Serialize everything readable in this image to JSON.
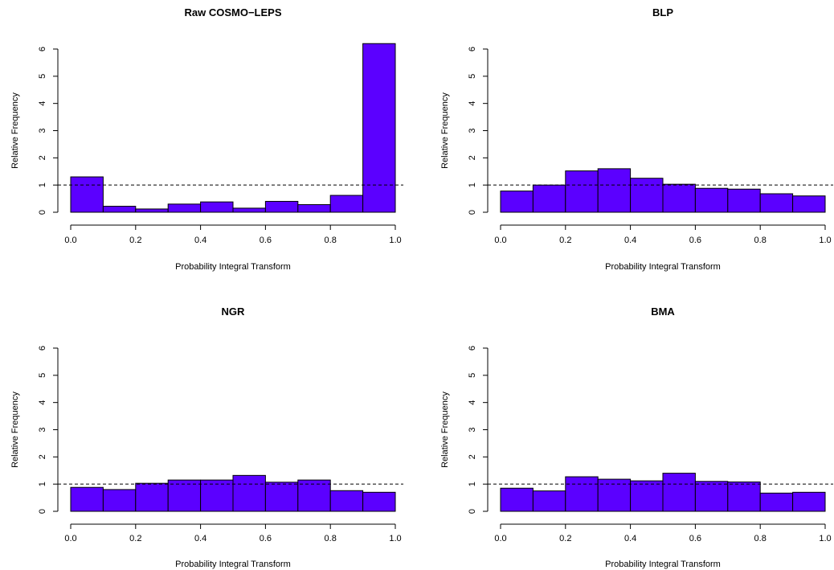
{
  "figure": {
    "bar_color": "#5b00ff",
    "bar_border_color": "#000000",
    "reference_line_value": 1,
    "reference_line_style": "dashed"
  },
  "chart_data": [
    {
      "type": "bar",
      "title": "Raw COSMO−LEPS",
      "xlabel": "Probability Integral Transform",
      "ylabel": "Relative Frequency",
      "bin_edges": [
        0,
        0.1,
        0.2,
        0.3,
        0.4,
        0.5,
        0.6,
        0.7,
        0.8,
        0.9,
        1.0
      ],
      "values": [
        1.3,
        0.22,
        0.12,
        0.3,
        0.38,
        0.15,
        0.4,
        0.28,
        0.62,
        6.2
      ],
      "xlim": [
        0,
        1
      ],
      "ylim": [
        0,
        6
      ],
      "xticks": [
        "0.0",
        "0.2",
        "0.4",
        "0.6",
        "0.8",
        "1.0"
      ],
      "yticks": [
        "0",
        "1",
        "2",
        "3",
        "4",
        "5",
        "6"
      ]
    },
    {
      "type": "bar",
      "title": "BLP",
      "xlabel": "Probability Integral Transform",
      "ylabel": "Relative Frequency",
      "bin_edges": [
        0,
        0.1,
        0.2,
        0.3,
        0.4,
        0.5,
        0.6,
        0.7,
        0.8,
        0.9,
        1.0
      ],
      "values": [
        0.78,
        1.0,
        1.52,
        1.6,
        1.25,
        1.03,
        0.88,
        0.85,
        0.68,
        0.6
      ],
      "xlim": [
        0,
        1
      ],
      "ylim": [
        0,
        6
      ],
      "xticks": [
        "0.0",
        "0.2",
        "0.4",
        "0.6",
        "0.8",
        "1.0"
      ],
      "yticks": [
        "0",
        "1",
        "2",
        "3",
        "4",
        "5",
        "6"
      ]
    },
    {
      "type": "bar",
      "title": "NGR",
      "xlabel": "Probability Integral Transform",
      "ylabel": "Relative Frequency",
      "bin_edges": [
        0,
        0.1,
        0.2,
        0.3,
        0.4,
        0.5,
        0.6,
        0.7,
        0.8,
        0.9,
        1.0
      ],
      "values": [
        0.88,
        0.8,
        1.03,
        1.15,
        1.15,
        1.32,
        1.07,
        1.15,
        0.76,
        0.7
      ],
      "xlim": [
        0,
        1
      ],
      "ylim": [
        0,
        6
      ],
      "xticks": [
        "0.0",
        "0.2",
        "0.4",
        "0.6",
        "0.8",
        "1.0"
      ],
      "yticks": [
        "0",
        "1",
        "2",
        "3",
        "4",
        "5",
        "6"
      ]
    },
    {
      "type": "bar",
      "title": "BMA",
      "xlabel": "Probability Integral Transform",
      "ylabel": "Relative Frequency",
      "bin_edges": [
        0,
        0.1,
        0.2,
        0.3,
        0.4,
        0.5,
        0.6,
        0.7,
        0.8,
        0.9,
        1.0
      ],
      "values": [
        0.85,
        0.75,
        1.27,
        1.18,
        1.12,
        1.4,
        1.1,
        1.08,
        0.67,
        0.7
      ],
      "xlim": [
        0,
        1
      ],
      "ylim": [
        0,
        6
      ],
      "xticks": [
        "0.0",
        "0.2",
        "0.4",
        "0.6",
        "0.8",
        "1.0"
      ],
      "yticks": [
        "0",
        "1",
        "2",
        "3",
        "4",
        "5",
        "6"
      ]
    }
  ]
}
